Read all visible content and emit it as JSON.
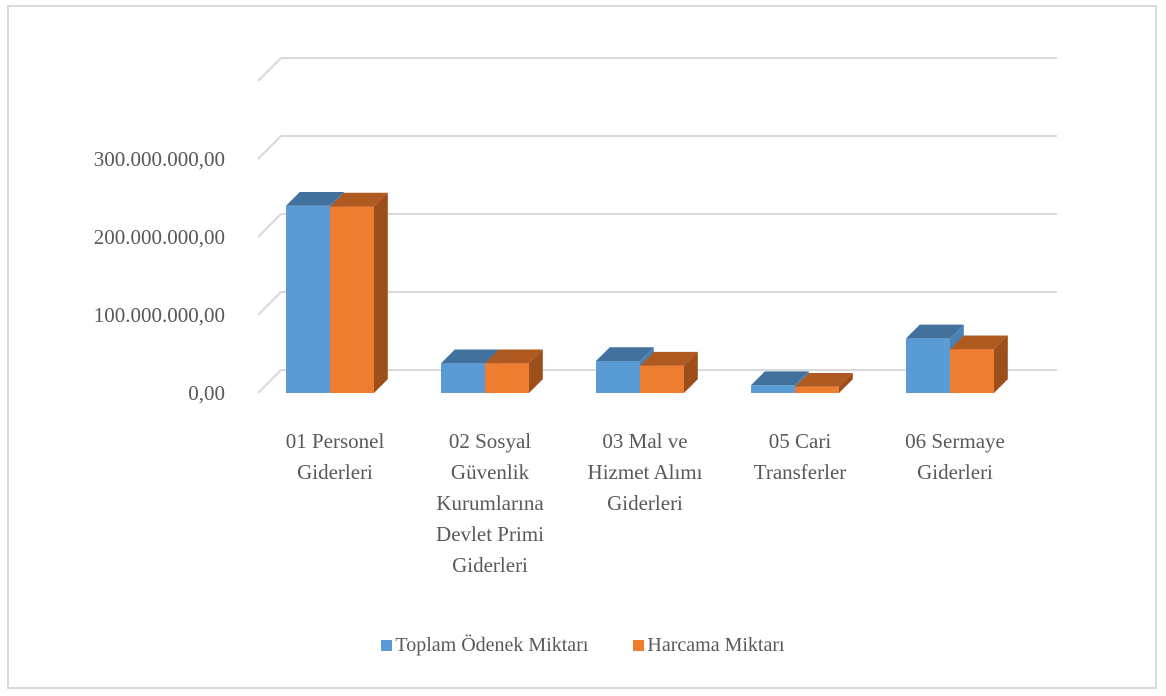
{
  "chart_data": {
    "type": "bar",
    "title": "",
    "xlabel": "",
    "ylabel": "",
    "ylim": [
      0,
      300000000
    ],
    "y_ticks": [
      "0,00",
      "100.000.000,00",
      "200.000.000,00",
      "300.000.000,00"
    ],
    "grid": true,
    "legend_position": "bottom",
    "categories": [
      [
        "01 Personel",
        "Giderleri"
      ],
      [
        "02 Sosyal",
        "Güvenlik",
        "Kurumlarına",
        "Devlet Primi",
        "Giderleri"
      ],
      [
        "03 Mal ve",
        "Hizmet Alımı",
        "Giderleri"
      ],
      [
        "05 Cari",
        "Transferler"
      ],
      [
        "06 Sermaye",
        "Giderleri"
      ]
    ],
    "series": [
      {
        "name": "Toplam Ödenek Miktarı",
        "color": "#5b9bd5",
        "top_color": "#41719c",
        "values": [
          240000000,
          38000000,
          41000000,
          10000000,
          70000000
        ]
      },
      {
        "name": "Harcama Miktarı",
        "color": "#ed7d31",
        "top_color": "#ae5a21",
        "values": [
          239000000,
          38000000,
          35000000,
          8000000,
          56000000
        ]
      }
    ]
  }
}
